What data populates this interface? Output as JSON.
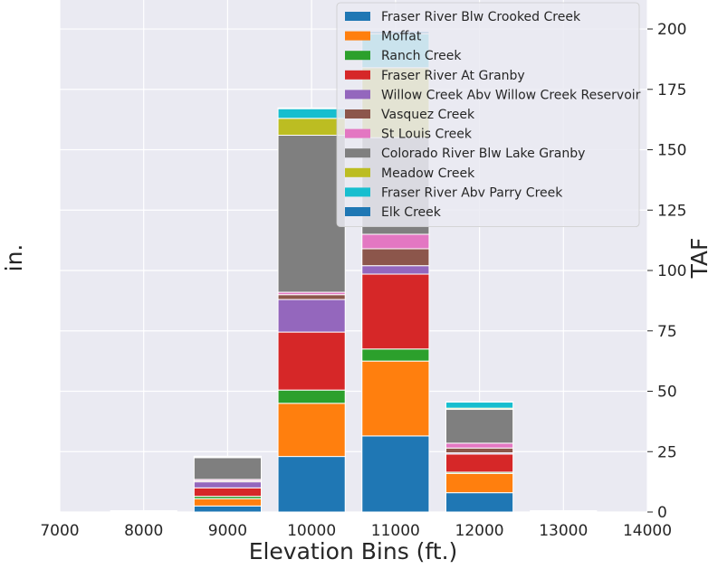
{
  "chart_data": {
    "type": "bar",
    "stacked": true,
    "xlabel": "Elevation Bins (ft.)",
    "ylabel_left": "in.",
    "ylabel_right": "TAF",
    "xlim": [
      7000,
      14000
    ],
    "ylim": [
      0,
      212
    ],
    "x_ticks": [
      "7000",
      "8000",
      "9000",
      "10000",
      "11000",
      "12000",
      "13000",
      "14000"
    ],
    "y_ticks_right": [
      "0",
      "25",
      "50",
      "75",
      "100",
      "125",
      "150",
      "175",
      "200"
    ],
    "grid": true,
    "legend_position": "top-right",
    "bar_width": 800,
    "x": [
      9000,
      10000,
      11000,
      12000
    ],
    "series": [
      {
        "name": "Elk Creek",
        "color": "#1f77b4",
        "values": [
          2.5,
          23,
          31.5,
          8
        ]
      },
      {
        "name": "Moffat",
        "color": "#ff7f0e",
        "values": [
          3,
          22,
          31,
          8
        ]
      },
      {
        "name": "Ranch Creek",
        "color": "#2ca02c",
        "values": [
          1,
          5.5,
          5,
          0.5
        ]
      },
      {
        "name": "Fraser River At Granby",
        "color": "#d62728",
        "values": [
          3.5,
          24,
          31,
          7.5
        ]
      },
      {
        "name": "Willow Creek Abv Willow Creek Reservoir",
        "color": "#9467bd",
        "values": [
          2.5,
          13.5,
          3.5,
          0.5
        ]
      },
      {
        "name": "Vasquez Creek",
        "color": "#8c564b",
        "values": [
          0.5,
          2,
          7,
          2
        ]
      },
      {
        "name": "St Louis Creek",
        "color": "#e377c2",
        "values": [
          0.5,
          1,
          6,
          2
        ]
      },
      {
        "name": "Colorado River Blw Lake Granby",
        "color": "#7f7f7f",
        "values": [
          9,
          65,
          40,
          14
        ]
      },
      {
        "name": "Meadow Creek",
        "color": "#bcbd22",
        "values": [
          0.3,
          7,
          29,
          0.5
        ]
      },
      {
        "name": "Fraser River Abv Parry Creek",
        "color": "#17becf",
        "values": [
          0.2,
          4,
          14,
          2.5
        ]
      },
      {
        "name": "Fraser River Blw Crooked Creek",
        "color": "#1f77b4",
        "values": [
          0.1,
          0.3,
          1,
          0.2
        ]
      }
    ],
    "legend": [
      {
        "label": "Fraser River Blw Crooked Creek",
        "color": "#1f77b4"
      },
      {
        "label": "Moffat",
        "color": "#ff7f0e"
      },
      {
        "label": "Ranch Creek",
        "color": "#2ca02c"
      },
      {
        "label": "Fraser River At Granby",
        "color": "#d62728"
      },
      {
        "label": "Willow Creek Abv Willow Creek Reservoir",
        "color": "#9467bd"
      },
      {
        "label": "Vasquez Creek",
        "color": "#8c564b"
      },
      {
        "label": "St Louis Creek",
        "color": "#e377c2"
      },
      {
        "label": "Colorado River Blw Lake Granby",
        "color": "#7f7f7f"
      },
      {
        "label": "Meadow Creek",
        "color": "#bcbd22"
      },
      {
        "label": "Fraser River Abv Parry Creek",
        "color": "#17becf"
      },
      {
        "label": "Elk Creek",
        "color": "#1f77b4"
      }
    ],
    "empty_bins": [
      8000,
      13000
    ]
  }
}
